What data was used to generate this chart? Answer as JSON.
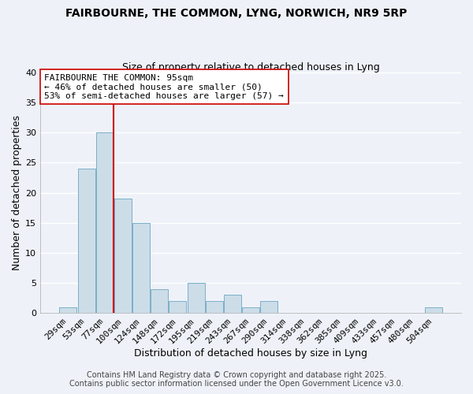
{
  "title": "FAIRBOURNE, THE COMMON, LYNG, NORWICH, NR9 5RP",
  "subtitle": "Size of property relative to detached houses in Lyng",
  "xlabel": "Distribution of detached houses by size in Lyng",
  "ylabel": "Number of detached properties",
  "bar_color": "#ccdde8",
  "bar_edge_color": "#7aafc8",
  "background_color": "#eef2f8",
  "grid_color": "#ffffff",
  "categories": [
    "29sqm",
    "53sqm",
    "77sqm",
    "100sqm",
    "124sqm",
    "148sqm",
    "172sqm",
    "195sqm",
    "219sqm",
    "243sqm",
    "267sqm",
    "290sqm",
    "314sqm",
    "338sqm",
    "362sqm",
    "385sqm",
    "409sqm",
    "433sqm",
    "457sqm",
    "480sqm",
    "504sqm"
  ],
  "values": [
    1,
    24,
    30,
    19,
    15,
    4,
    2,
    5,
    2,
    3,
    1,
    2,
    0,
    0,
    0,
    0,
    0,
    0,
    0,
    0,
    1
  ],
  "ylim": [
    0,
    40
  ],
  "vline_index": 3,
  "vline_color": "#cc0000",
  "annotation_text": "FAIRBOURNE THE COMMON: 95sqm\n← 46% of detached houses are smaller (50)\n53% of semi-detached houses are larger (57) →",
  "footer1": "Contains HM Land Registry data © Crown copyright and database right 2025.",
  "footer2": "Contains public sector information licensed under the Open Government Licence v3.0.",
  "title_fontsize": 10,
  "subtitle_fontsize": 9,
  "axis_label_fontsize": 9,
  "tick_fontsize": 8,
  "annotation_fontsize": 8,
  "footer_fontsize": 7
}
